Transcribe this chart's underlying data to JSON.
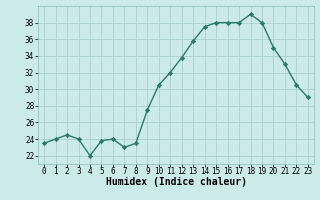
{
  "x": [
    0,
    1,
    2,
    3,
    4,
    5,
    6,
    7,
    8,
    9,
    10,
    11,
    12,
    13,
    14,
    15,
    16,
    17,
    18,
    19,
    20,
    21,
    22,
    23
  ],
  "y": [
    23.5,
    24.0,
    24.5,
    24.0,
    22.0,
    23.8,
    24.0,
    23.0,
    23.5,
    27.5,
    30.5,
    32.0,
    33.8,
    35.8,
    37.5,
    38.0,
    38.0,
    38.0,
    39.0,
    38.0,
    35.0,
    33.0,
    30.5,
    29.0
  ],
  "line_color": "#2a7a6a",
  "marker": "D",
  "markersize": 2.2,
  "linewidth": 1.0,
  "bg_color": "#cdeaea",
  "grid_color": "#aacece",
  "xlabel": "Humidex (Indice chaleur)",
  "ylim": [
    21,
    40
  ],
  "xlim": [
    -0.5,
    23.5
  ],
  "yticks": [
    22,
    24,
    26,
    28,
    30,
    32,
    34,
    36,
    38
  ],
  "xticks": [
    0,
    1,
    2,
    3,
    4,
    5,
    6,
    7,
    8,
    9,
    10,
    11,
    12,
    13,
    14,
    15,
    16,
    17,
    18,
    19,
    20,
    21,
    22,
    23
  ],
  "xlabel_fontsize": 7,
  "tick_fontsize": 5.5
}
